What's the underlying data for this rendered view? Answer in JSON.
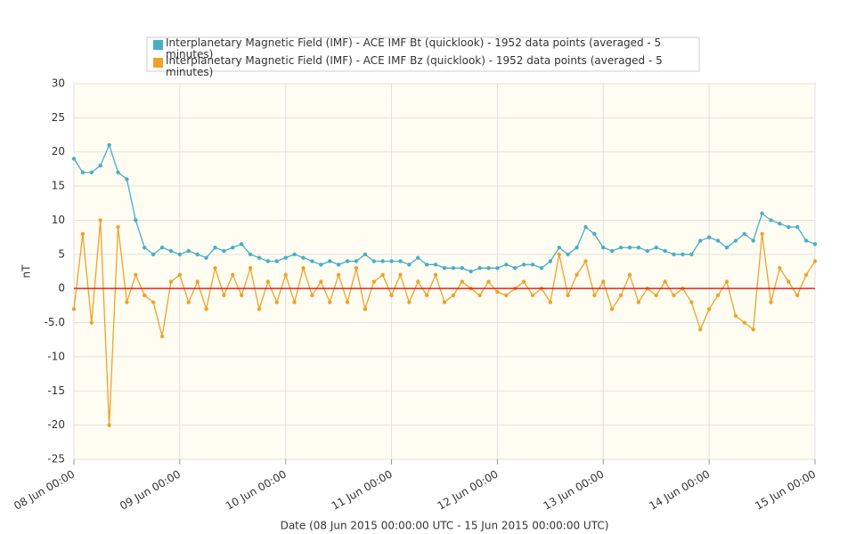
{
  "chart_data": {
    "type": "line",
    "legend_position": "top",
    "x_label": "Date (08 Jun 2015 00:00:00 UTC - 15 Jun 2015 00:00:00 UTC)",
    "y_label": "nT",
    "xlim": [
      "2015-06-08T00:00",
      "2015-06-15T00:00"
    ],
    "xticks": [
      {
        "value": "2015-06-08T00:00",
        "label": "08 Jun 00:00"
      },
      {
        "value": "2015-06-09T00:00",
        "label": "09 Jun 00:00"
      },
      {
        "value": "2015-06-10T00:00",
        "label": "10 Jun 00:00"
      },
      {
        "value": "2015-06-11T00:00",
        "label": "11 Jun 00:00"
      },
      {
        "value": "2015-06-12T00:00",
        "label": "12 Jun 00:00"
      },
      {
        "value": "2015-06-13T00:00",
        "label": "13 Jun 00:00"
      },
      {
        "value": "2015-06-14T00:00",
        "label": "14 Jun 00:00"
      },
      {
        "value": "2015-06-15T00:00",
        "label": "15 Jun 00:00"
      }
    ],
    "ylim": [
      -25,
      30
    ],
    "yticks": [
      30,
      25,
      20,
      15,
      10,
      5,
      0,
      {
        "value": -5,
        "label": "-5.0"
      },
      -10,
      -15,
      -20,
      -25
    ],
    "grid": true,
    "plot_line": {
      "value": 0,
      "color": "#e8201a"
    },
    "x": [
      "2015-06-08T00:00",
      "2015-06-08T02:00",
      "2015-06-08T04:00",
      "2015-06-08T06:00",
      "2015-06-08T08:00",
      "2015-06-08T10:00",
      "2015-06-08T12:00",
      "2015-06-08T14:00",
      "2015-06-08T16:00",
      "2015-06-08T18:00",
      "2015-06-08T20:00",
      "2015-06-08T22:00",
      "2015-06-09T00:00",
      "2015-06-09T02:00",
      "2015-06-09T04:00",
      "2015-06-09T06:00",
      "2015-06-09T08:00",
      "2015-06-09T10:00",
      "2015-06-09T12:00",
      "2015-06-09T14:00",
      "2015-06-09T16:00",
      "2015-06-09T18:00",
      "2015-06-09T20:00",
      "2015-06-09T22:00",
      "2015-06-10T00:00",
      "2015-06-10T02:00",
      "2015-06-10T04:00",
      "2015-06-10T06:00",
      "2015-06-10T08:00",
      "2015-06-10T10:00",
      "2015-06-10T12:00",
      "2015-06-10T14:00",
      "2015-06-10T16:00",
      "2015-06-10T18:00",
      "2015-06-10T20:00",
      "2015-06-10T22:00",
      "2015-06-11T00:00",
      "2015-06-11T02:00",
      "2015-06-11T04:00",
      "2015-06-11T06:00",
      "2015-06-11T08:00",
      "2015-06-11T10:00",
      "2015-06-11T12:00",
      "2015-06-11T14:00",
      "2015-06-11T16:00",
      "2015-06-11T18:00",
      "2015-06-11T20:00",
      "2015-06-11T22:00",
      "2015-06-12T00:00",
      "2015-06-12T02:00",
      "2015-06-12T04:00",
      "2015-06-12T06:00",
      "2015-06-12T08:00",
      "2015-06-12T10:00",
      "2015-06-12T12:00",
      "2015-06-12T14:00",
      "2015-06-12T16:00",
      "2015-06-12T18:00",
      "2015-06-12T20:00",
      "2015-06-12T22:00",
      "2015-06-13T00:00",
      "2015-06-13T02:00",
      "2015-06-13T04:00",
      "2015-06-13T06:00",
      "2015-06-13T08:00",
      "2015-06-13T10:00",
      "2015-06-13T12:00",
      "2015-06-13T14:00",
      "2015-06-13T16:00",
      "2015-06-13T18:00",
      "2015-06-13T20:00",
      "2015-06-13T22:00",
      "2015-06-14T00:00",
      "2015-06-14T02:00",
      "2015-06-14T04:00",
      "2015-06-14T06:00",
      "2015-06-14T08:00",
      "2015-06-14T10:00",
      "2015-06-14T12:00",
      "2015-06-14T14:00",
      "2015-06-14T16:00",
      "2015-06-14T18:00",
      "2015-06-14T20:00",
      "2015-06-14T22:00",
      "2015-06-15T00:00"
    ],
    "series": [
      {
        "name": "Interplanetary Magnetic Field (IMF) - ACE IMF Bt (quicklook) - 1952 data points (averaged - 5 minutes)",
        "color": "#47aec6",
        "values": [
          19,
          17,
          17,
          18,
          21,
          17,
          16,
          10,
          6,
          5,
          6,
          5.5,
          5,
          5.5,
          5,
          4.5,
          6,
          5.5,
          6,
          6.5,
          5,
          4.5,
          4,
          4,
          4.5,
          5,
          4.5,
          4,
          3.5,
          4,
          3.5,
          4,
          4,
          5,
          4,
          4,
          4,
          4,
          3.5,
          4.5,
          3.5,
          3.5,
          3,
          3,
          3,
          2.5,
          3,
          3,
          3,
          3.5,
          3,
          3.5,
          3.5,
          3,
          4,
          6,
          5,
          6,
          9,
          8,
          6,
          5.5,
          6,
          6,
          6,
          5.5,
          6,
          5.5,
          5,
          5,
          5,
          7,
          7.5,
          7,
          6,
          7,
          8,
          7,
          11,
          10,
          9.5,
          9,
          9,
          7,
          6.5
        ]
      },
      {
        "name": "Interplanetary Magnetic Field (IMF) - ACE IMF Bz (quicklook) - 1952 data points (averaged - 5 minutes)",
        "color": "#f0a12a",
        "values": [
          -3,
          8,
          -5,
          10,
          -20,
          9,
          -2,
          2,
          -1,
          -2,
          -7,
          1,
          2,
          -2,
          1,
          -3,
          3,
          -1,
          2,
          -1,
          3,
          -3,
          1,
          -2,
          2,
          -2,
          3,
          -1,
          1,
          -2,
          2,
          -2,
          3,
          -3,
          1,
          2,
          -1,
          2,
          -2,
          1,
          -1,
          2,
          -2,
          -1,
          1,
          0,
          -1,
          1,
          -0.5,
          -1,
          0,
          1,
          -1,
          0,
          -2,
          5,
          -1,
          2,
          4,
          -1,
          1,
          -3,
          -1,
          2,
          -2,
          0,
          -1,
          1,
          -1,
          0,
          -2,
          -6,
          -3,
          -1,
          1,
          -4,
          -5,
          -6,
          8,
          -2,
          3,
          1,
          -1,
          2,
          4
        ]
      }
    ]
  }
}
